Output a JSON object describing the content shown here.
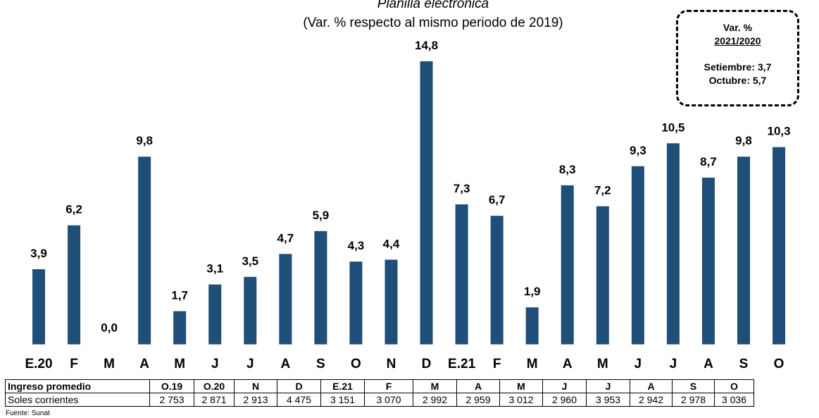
{
  "chart_data": {
    "type": "bar",
    "title": "Planilla electrónica",
    "subtitle": "(Var. % respecto al mismo periodo de 2019)",
    "categories": [
      "E.20",
      "F",
      "M",
      "A",
      "M",
      "J",
      "J",
      "A",
      "S",
      "O",
      "N",
      "D",
      "E.21",
      "F",
      "M",
      "A",
      "M",
      "J",
      "J",
      "A",
      "S",
      "O"
    ],
    "values": [
      3.9,
      6.2,
      0.0,
      9.8,
      1.7,
      3.1,
      3.5,
      4.7,
      5.9,
      4.3,
      4.4,
      14.8,
      7.3,
      6.7,
      1.9,
      8.3,
      7.2,
      9.3,
      10.5,
      8.7,
      9.8,
      10.3
    ],
    "value_labels": [
      "3,9",
      "6,2",
      "0,0",
      "9,8",
      "1,7",
      "3,1",
      "3,5",
      "4,7",
      "5,9",
      "4,3",
      "4,4",
      "14,8",
      "7,3",
      "6,7",
      "1,9",
      "8,3",
      "7,2",
      "9,3",
      "10,5",
      "8,7",
      "9,8",
      "10,3"
    ],
    "color": "#1f4e79",
    "ylim": [
      0,
      15
    ]
  },
  "annotation": {
    "title": "Var. %",
    "period": "2021/2020",
    "lines": [
      "Setiembre: 3,7",
      "Octubre: 5,7"
    ]
  },
  "table": {
    "header": [
      "Ingreso promedio",
      "O.19",
      "O.20",
      "N",
      "D",
      "E.21",
      "F",
      "M",
      "A",
      "M",
      "J",
      "J",
      "A",
      "S",
      "O"
    ],
    "rows": [
      [
        "Soles corrientes",
        "2 753",
        "2 871",
        "2 913",
        "4 475",
        "3 151",
        "3 070",
        "2 992",
        "2 959",
        "3 012",
        "2 960",
        "3 953",
        "2 942",
        "2 978",
        "3 036"
      ]
    ]
  },
  "source": "Fuente: Sunat"
}
